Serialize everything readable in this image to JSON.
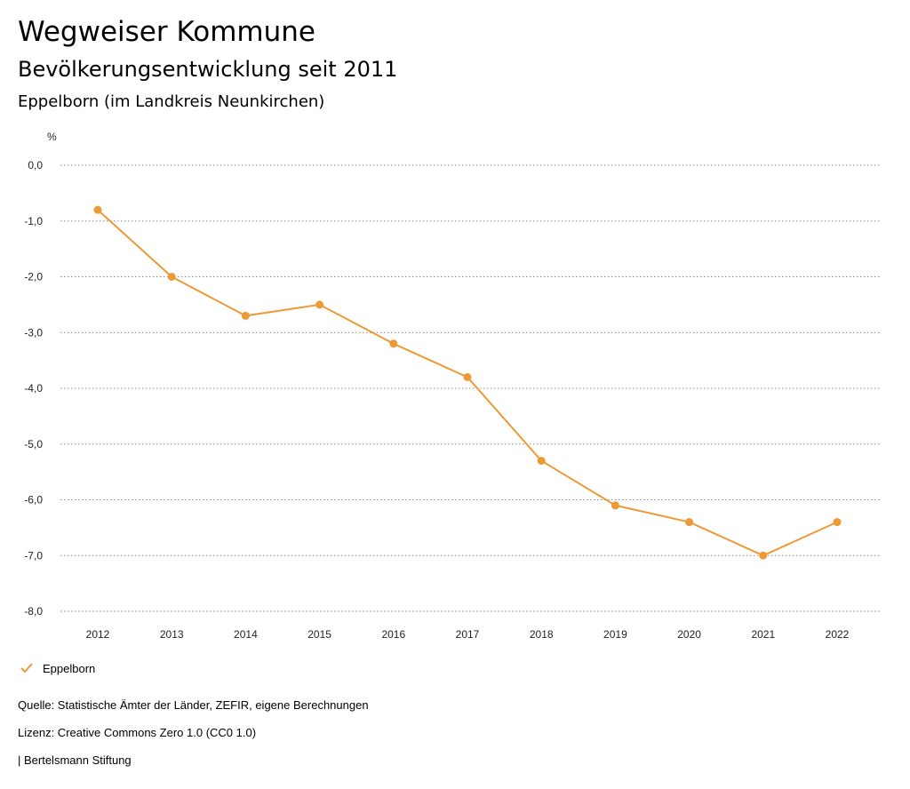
{
  "header": {
    "title": "Wegweiser Kommune",
    "subtitle": "Bevölkerungsentwicklung seit 2011",
    "region": "Eppelborn (im Landkreis Neunkirchen)"
  },
  "chart_data": {
    "type": "line",
    "unit_label": "%",
    "categories": [
      "2012",
      "2013",
      "2014",
      "2015",
      "2016",
      "2017",
      "2018",
      "2019",
      "2020",
      "2021",
      "2022"
    ],
    "series": [
      {
        "name": "Eppelborn",
        "color": "#ed9a35",
        "values": [
          -0.8,
          -2.0,
          -2.7,
          -2.5,
          -3.2,
          -3.8,
          -5.3,
          -6.1,
          -6.4,
          -7.0,
          -6.4
        ]
      }
    ],
    "y_ticks": [
      "0,0",
      "-1,0",
      "-2,0",
      "-3,0",
      "-4,0",
      "-5,0",
      "-6,0",
      "-7,0",
      "-8,0"
    ],
    "ylim": [
      -8,
      0
    ],
    "grid": true,
    "legend": "bottom-left"
  },
  "legend": {
    "label": "Eppelborn",
    "icon": "checkmark-icon"
  },
  "footer": {
    "source": "Quelle: Statistische Ämter der Länder, ZEFIR, eigene Berechnungen",
    "license": "Lizenz: Creative Commons Zero 1.0 (CC0 1.0)",
    "org": "| Bertelsmann Stiftung"
  }
}
